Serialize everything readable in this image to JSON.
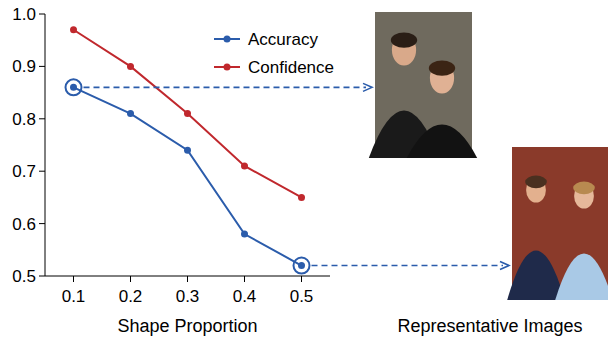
{
  "chart_data": {
    "type": "line",
    "x": [
      0.1,
      0.2,
      0.3,
      0.4,
      0.5
    ],
    "series": [
      {
        "name": "Accuracy",
        "color": "#2b5cab",
        "marker": "circle",
        "values": [
          0.86,
          0.81,
          0.74,
          0.58,
          0.52
        ]
      },
      {
        "name": "Confidence",
        "color": "#c0282d",
        "marker": "circle",
        "values": [
          0.97,
          0.9,
          0.81,
          0.71,
          0.65
        ]
      }
    ],
    "x_label": "Shape Proportion",
    "annotations": [
      "Representative Images"
    ],
    "xlim": [
      0.05,
      0.55
    ],
    "xticks": [
      0.1,
      0.2,
      0.3,
      0.4,
      0.5
    ],
    "ylim": [
      0.5,
      1.0
    ],
    "yticks": [
      0.5,
      0.6,
      0.7,
      0.8,
      0.9,
      {
        "value": 1.0,
        "label": "1.0"
      }
    ],
    "legend": "top"
  }
}
